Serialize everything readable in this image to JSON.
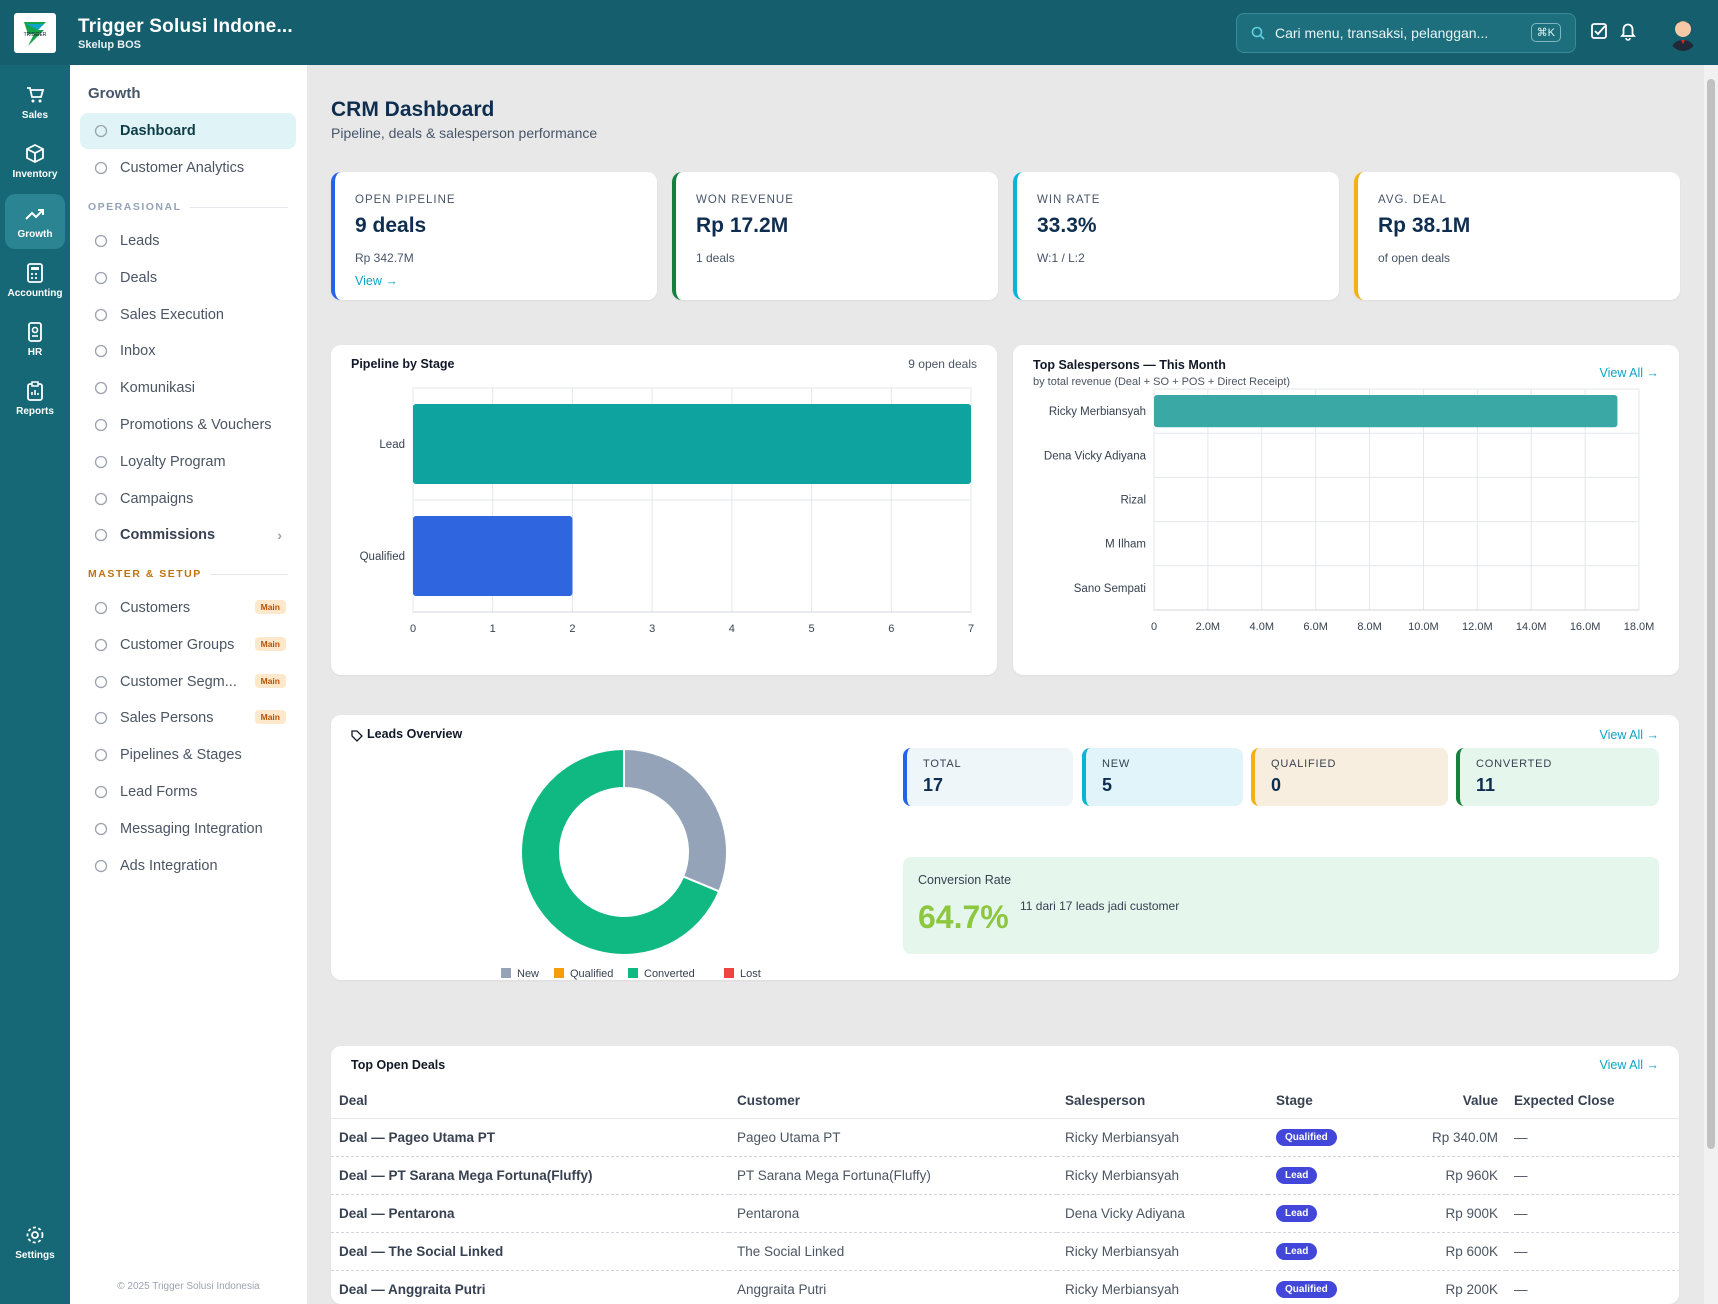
{
  "header": {
    "company": "Trigger Solusi Indone...",
    "subtitle": "Skelup BOS",
    "search_placeholder": "Cari menu, transaksi, pelanggan...",
    "shortcut": "⌘K"
  },
  "rail": [
    {
      "label": "Sales",
      "icon": "cart-icon"
    },
    {
      "label": "Inventory",
      "icon": "box-icon"
    },
    {
      "label": "Growth",
      "icon": "trend-icon",
      "active": true
    },
    {
      "label": "Accounting",
      "icon": "calculator-icon"
    },
    {
      "label": "HR",
      "icon": "id-badge-icon"
    },
    {
      "label": "Reports",
      "icon": "clipboard-icon"
    },
    {
      "label": "Settings",
      "icon": "gear-icon"
    }
  ],
  "sidebar": {
    "heading": "Growth",
    "top_items": [
      {
        "label": "Dashboard",
        "active": true
      },
      {
        "label": "Customer Analytics"
      }
    ],
    "section1": "OPERASIONAL",
    "op_items": [
      {
        "label": "Leads"
      },
      {
        "label": "Deals"
      },
      {
        "label": "Sales Execution"
      },
      {
        "label": "Inbox"
      },
      {
        "label": "Komunikasi"
      },
      {
        "label": "Promotions & Vouchers"
      },
      {
        "label": "Loyalty Program"
      },
      {
        "label": "Campaigns"
      },
      {
        "label": "Commissions"
      }
    ],
    "section2": "MASTER & SETUP",
    "master_items": [
      {
        "label": "Customers",
        "badge": "Main"
      },
      {
        "label": "Customer Groups",
        "badge": "Main"
      },
      {
        "label": "Customer Segm...",
        "badge": "Main"
      },
      {
        "label": "Sales Persons",
        "badge": "Main"
      },
      {
        "label": "Pipelines & Stages"
      },
      {
        "label": "Lead Forms"
      },
      {
        "label": "Messaging Integration"
      },
      {
        "label": "Ads Integration"
      }
    ],
    "copyright": "© 2025 Trigger Solusi Indonesia"
  },
  "page": {
    "title": "CRM Dashboard",
    "subtitle": "Pipeline, deals & salesperson performance"
  },
  "kpis": [
    {
      "label": "OPEN PIPELINE",
      "value": "9 deals",
      "sub": "Rp 342.7M",
      "link": "View →",
      "color": "#2563eb"
    },
    {
      "label": "WON REVENUE",
      "value": "Rp 17.2M",
      "sub": "1 deals",
      "color": "#15803d"
    },
    {
      "label": "WIN RATE",
      "value": "33.3%",
      "sub": "W:1 / L:2",
      "color": "#06b6d4"
    },
    {
      "label": "AVG. DEAL",
      "value": "Rp 38.1M",
      "sub": "of open deals",
      "color": "#f5b014"
    }
  ],
  "pipeline": {
    "title": "Pipeline by Stage",
    "count": "9 open deals"
  },
  "topsales": {
    "title": "Top Salespersons — This Month",
    "subtitle": "by total revenue (Deal + SO + POS + Direct Receipt)",
    "link": "View All →"
  },
  "leads": {
    "title": "Leads Overview",
    "link": "View All →",
    "stats": [
      {
        "label": "TOTAL",
        "value": "17"
      },
      {
        "label": "NEW",
        "value": "5"
      },
      {
        "label": "QUALIFIED",
        "value": "0"
      },
      {
        "label": "CONVERTED",
        "value": "11"
      }
    ],
    "conversion_label": "Conversion Rate",
    "conversion_value": "64.7%",
    "conversion_note": "11 dari 17 leads jadi customer"
  },
  "deals": {
    "title": "Top Open Deals",
    "link": "View All →",
    "columns": [
      "Deal",
      "Customer",
      "Salesperson",
      "Stage",
      "Value",
      "Expected Close"
    ],
    "rows": [
      {
        "deal": "Deal — Pageo Utama PT",
        "customer": "Pageo Utama PT",
        "sales": "Ricky Merbiansyah",
        "stage": "Qualified",
        "value": "Rp 340.0M",
        "close": "—"
      },
      {
        "deal": "Deal — PT Sarana Mega Fortuna(Fluffy)",
        "customer": "PT Sarana Mega Fortuna(Fluffy)",
        "sales": "Ricky Merbiansyah",
        "stage": "Lead",
        "value": "Rp 960K",
        "close": "—"
      },
      {
        "deal": "Deal — Pentarona",
        "customer": "Pentarona",
        "sales": "Dena Vicky Adiyana",
        "stage": "Lead",
        "value": "Rp 900K",
        "close": "—"
      },
      {
        "deal": "Deal — The Social Linked",
        "customer": "The Social Linked",
        "sales": "Ricky Merbiansyah",
        "stage": "Lead",
        "value": "Rp 600K",
        "close": "—"
      },
      {
        "deal": "Deal — Anggraita Putri",
        "customer": "Anggraita Putri",
        "sales": "Ricky Merbiansyah",
        "stage": "Qualified",
        "value": "Rp 200K",
        "close": "—"
      }
    ]
  },
  "chart_data": [
    {
      "type": "bar",
      "orientation": "horizontal",
      "categories": [
        "Lead",
        "Qualified"
      ],
      "values": [
        7,
        2
      ],
      "colors": [
        "#0fa3a0",
        "#2f66df"
      ],
      "xlim": [
        0,
        7
      ],
      "xticks": [
        "0",
        "1",
        "2",
        "3",
        "4",
        "5",
        "6",
        "7"
      ],
      "grid": true
    },
    {
      "type": "bar",
      "orientation": "horizontal",
      "categories": [
        "Ricky Merbiansyah",
        "Dena Vicky Adiyana",
        "Rizal",
        "M Ilham",
        "Sano Sempati"
      ],
      "values": [
        17200000,
        0,
        0,
        0,
        0
      ],
      "colors": [
        "#3aa9a6"
      ],
      "xlim": [
        0,
        18000000
      ],
      "xticks": [
        "0",
        "2.0M",
        "4.0M",
        "6.0M",
        "8.0M",
        "10.0M",
        "12.0M",
        "14.0M",
        "16.0M",
        "18.0M"
      ],
      "grid": true
    },
    {
      "type": "pie",
      "donut": true,
      "categories": [
        "New",
        "Qualified",
        "Converted",
        "Lost"
      ],
      "values": [
        5,
        0,
        11,
        0
      ],
      "colors": [
        "#94a3b8",
        "#f59e0b",
        "#10b981",
        "#ef4444"
      ],
      "legend": "bottom"
    }
  ]
}
